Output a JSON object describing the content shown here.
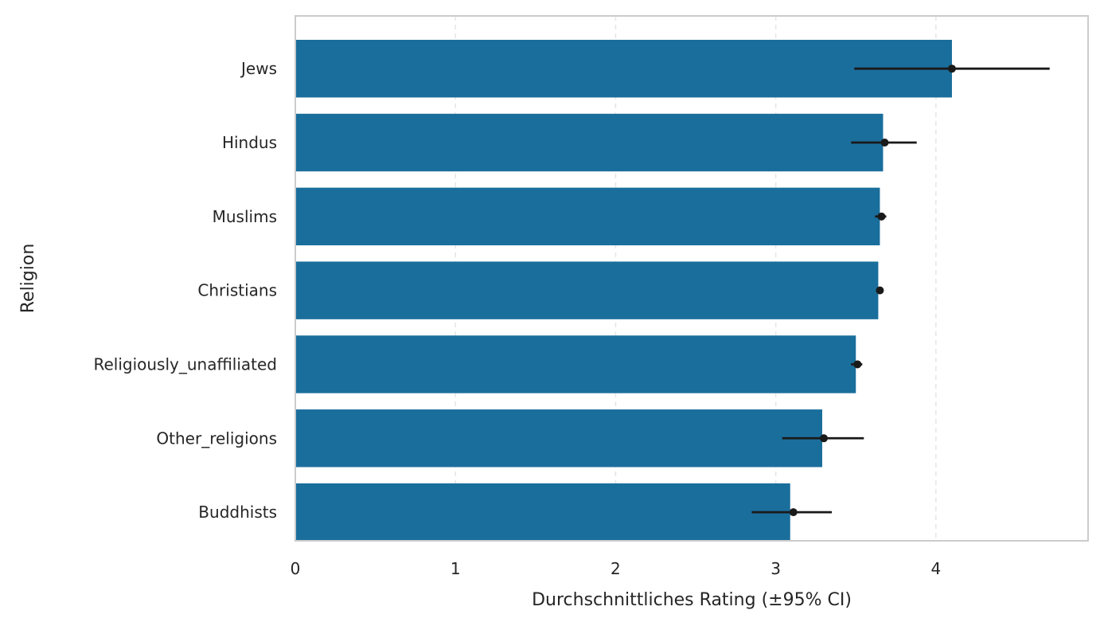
{
  "chart_data": {
    "type": "bar",
    "orientation": "horizontal",
    "xlabel": "Durchschnittliches Rating (±95% CI)",
    "ylabel": "Religion",
    "categories": [
      "Jews",
      "Hindus",
      "Muslims",
      "Christians",
      "Religiously_unaffiliated",
      "Other_religions",
      "Buddhists"
    ],
    "values": [
      4.1,
      3.67,
      3.65,
      3.64,
      3.5,
      3.29,
      3.09
    ],
    "ci_lower": [
      3.49,
      3.47,
      3.62,
      3.63,
      3.47,
      3.04,
      2.85
    ],
    "ci_upper": [
      4.71,
      3.88,
      3.69,
      3.66,
      3.54,
      3.55,
      3.35
    ],
    "point_estimate": [
      4.1,
      3.68,
      3.66,
      3.65,
      3.51,
      3.3,
      3.11
    ],
    "xticks": [
      "0",
      "1",
      "2",
      "3",
      "4"
    ],
    "xlim": [
      0,
      4.95
    ],
    "grid": "x-dashed",
    "colors": {
      "bar": "#1a6e9c",
      "error": "#1a1a1a",
      "grid": "#e6e6e6",
      "spine": "#cccccc"
    }
  }
}
